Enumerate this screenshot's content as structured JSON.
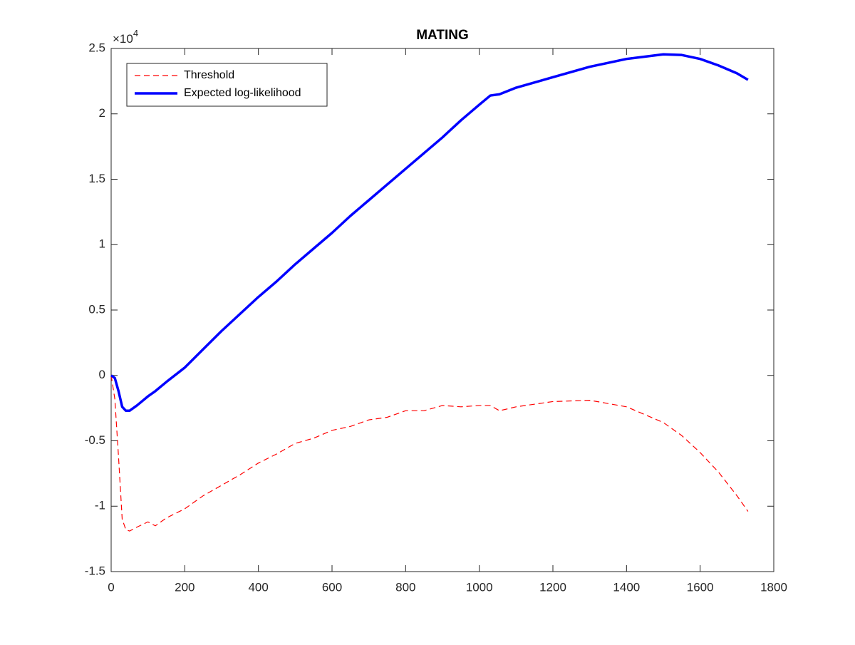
{
  "chart_data": {
    "type": "line",
    "title": "MATING",
    "y_multiplier": {
      "base": "×10",
      "exponent": "4"
    },
    "x": [
      0,
      10,
      20,
      30,
      40,
      50,
      70,
      100,
      120,
      150,
      200,
      250,
      300,
      350,
      400,
      450,
      500,
      550,
      600,
      650,
      700,
      750,
      800,
      850,
      900,
      950,
      1000,
      1030,
      1055,
      1100,
      1200,
      1300,
      1400,
      1500,
      1550,
      1600,
      1650,
      1700,
      1730
    ],
    "series": [
      {
        "name": "Threshold",
        "color": "#ff0000",
        "line_style": "dashed",
        "values": [
          0,
          -0.18,
          -0.62,
          -1.1,
          -1.18,
          -1.19,
          -1.16,
          -1.12,
          -1.15,
          -1.09,
          -1.02,
          -0.92,
          -0.84,
          -0.76,
          -0.67,
          -0.6,
          -0.52,
          -0.48,
          -0.42,
          -0.39,
          -0.34,
          -0.32,
          -0.27,
          -0.27,
          -0.23,
          -0.24,
          -0.23,
          -0.23,
          -0.27,
          -0.24,
          -0.2,
          -0.19,
          -0.24,
          -0.36,
          -0.46,
          -0.59,
          -0.74,
          -0.92,
          -1.04
        ]
      },
      {
        "name": "Expected log-likelihood",
        "color": "#0000ff",
        "line_style": "solid",
        "values": [
          0,
          -0.02,
          -0.12,
          -0.24,
          -0.27,
          -0.27,
          -0.23,
          -0.16,
          -0.12,
          -0.05,
          0.06,
          0.2,
          0.34,
          0.47,
          0.6,
          0.72,
          0.85,
          0.97,
          1.09,
          1.22,
          1.34,
          1.46,
          1.58,
          1.7,
          1.82,
          1.95,
          2.07,
          2.14,
          2.15,
          2.2,
          2.28,
          2.36,
          2.42,
          2.455,
          2.45,
          2.42,
          2.37,
          2.31,
          2.26
        ]
      }
    ],
    "xlim": [
      0,
      1800
    ],
    "xticks": [
      0,
      200,
      400,
      600,
      800,
      1000,
      1200,
      1400,
      1600,
      1800
    ],
    "ylim": [
      -1.5,
      2.5
    ],
    "yticks": [
      -1.5,
      -1,
      -0.5,
      0,
      0.5,
      1,
      1.5,
      2,
      2.5
    ],
    "legend": "northwest",
    "grid": false
  }
}
